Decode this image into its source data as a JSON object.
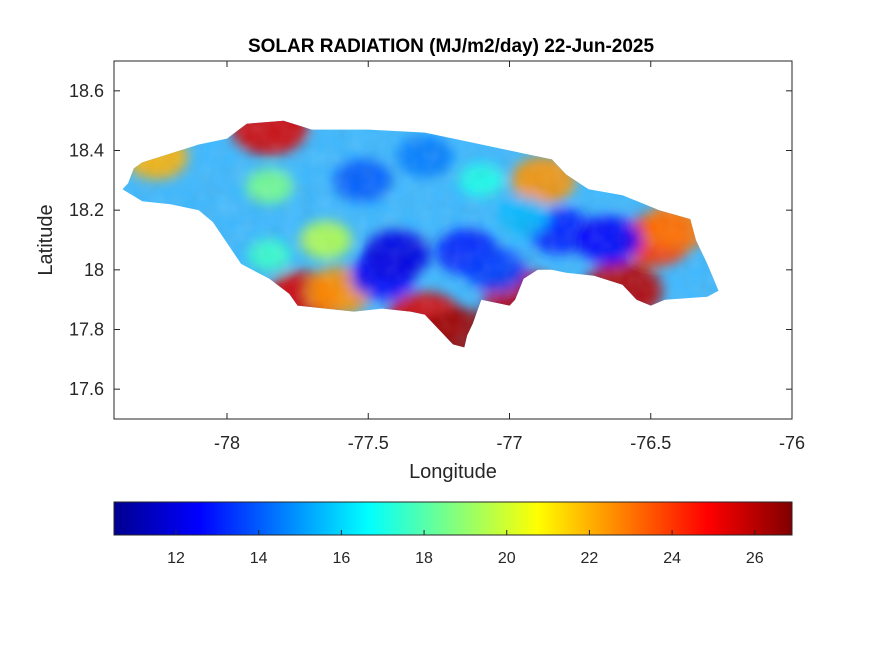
{
  "title": "SOLAR RADIATION (MJ/m2/day) 22-Jun-2025",
  "axes": {
    "xlabel": "Longitude",
    "ylabel": "Latitude",
    "xlim": [
      -78.4,
      -76
    ],
    "ylim": [
      17.5,
      18.7
    ],
    "xticks": [
      -78,
      -77.5,
      -77,
      -76.5,
      -76
    ],
    "xtick_labels": [
      "-78",
      "-77.5",
      "-77",
      "-76.5",
      "-76"
    ],
    "yticks": [
      17.6,
      17.8,
      18,
      18.2,
      18.4,
      18.6
    ],
    "ytick_labels": [
      "17.6",
      "17.8",
      "18",
      "18.2",
      "18.4",
      "18.6"
    ]
  },
  "colorbar": {
    "orientation": "horizontal",
    "colormap": "jet",
    "range": [
      10.5,
      26.9
    ],
    "ticks": [
      12,
      14,
      16,
      18,
      20,
      22,
      24,
      26
    ],
    "tick_labels": [
      "12",
      "14",
      "16",
      "18",
      "20",
      "22",
      "24",
      "26"
    ],
    "colors": [
      "#00008f",
      "#0000ff",
      "#0080ff",
      "#00ffff",
      "#80ff80",
      "#ffff00",
      "#ff8000",
      "#ff0000",
      "#800000"
    ]
  },
  "chart_data": {
    "type": "heatmap",
    "title": "SOLAR RADIATION (MJ/m2/day) 22-Jun-2025",
    "xlabel": "Longitude",
    "ylabel": "Latitude",
    "xlim": [
      -78.4,
      -76
    ],
    "ylim": [
      17.5,
      18.7
    ],
    "units": "MJ/m2/day",
    "value_range": [
      10.5,
      26.9
    ],
    "grid": false,
    "legend": "colorbar-bottom",
    "region_outline_lonlat": [
      [
        -78.37,
        18.27
      ],
      [
        -78.35,
        18.29
      ],
      [
        -78.33,
        18.34
      ],
      [
        -78.3,
        18.36
      ],
      [
        -78.2,
        18.39
      ],
      [
        -78.1,
        18.42
      ],
      [
        -78.0,
        18.44
      ],
      [
        -77.93,
        18.49
      ],
      [
        -77.8,
        18.5
      ],
      [
        -77.7,
        18.47
      ],
      [
        -77.5,
        18.47
      ],
      [
        -77.3,
        18.46
      ],
      [
        -77.15,
        18.43
      ],
      [
        -77.05,
        18.41
      ],
      [
        -76.95,
        18.39
      ],
      [
        -76.85,
        18.37
      ],
      [
        -76.8,
        18.32
      ],
      [
        -76.72,
        18.27
      ],
      [
        -76.6,
        18.25
      ],
      [
        -76.47,
        18.2
      ],
      [
        -76.36,
        18.17
      ],
      [
        -76.34,
        18.1
      ],
      [
        -76.3,
        18.02
      ],
      [
        -76.26,
        17.93
      ],
      [
        -76.3,
        17.91
      ],
      [
        -76.45,
        17.9
      ],
      [
        -76.5,
        17.88
      ],
      [
        -76.55,
        17.9
      ],
      [
        -76.6,
        17.95
      ],
      [
        -76.7,
        17.98
      ],
      [
        -76.8,
        17.99
      ],
      [
        -76.85,
        18.0
      ],
      [
        -76.9,
        18.0
      ],
      [
        -76.95,
        17.97
      ],
      [
        -76.98,
        17.9
      ],
      [
        -77.0,
        17.88
      ],
      [
        -77.05,
        17.89
      ],
      [
        -77.1,
        17.9
      ],
      [
        -77.13,
        17.82
      ],
      [
        -77.15,
        17.78
      ],
      [
        -77.16,
        17.74
      ],
      [
        -77.2,
        17.75
      ],
      [
        -77.25,
        17.8
      ],
      [
        -77.3,
        17.85
      ],
      [
        -77.35,
        17.86
      ],
      [
        -77.45,
        17.87
      ],
      [
        -77.55,
        17.86
      ],
      [
        -77.65,
        17.87
      ],
      [
        -77.75,
        17.88
      ],
      [
        -77.78,
        17.92
      ],
      [
        -77.85,
        17.97
      ],
      [
        -77.95,
        18.02
      ],
      [
        -78.0,
        18.09
      ],
      [
        -78.05,
        18.16
      ],
      [
        -78.1,
        18.2
      ],
      [
        -78.2,
        18.22
      ],
      [
        -78.3,
        18.23
      ],
      [
        -78.37,
        18.27
      ]
    ],
    "field_blobs": [
      {
        "lon": -77.85,
        "lat": 18.48,
        "value": 25.5
      },
      {
        "lon": -77.3,
        "lat": 17.83,
        "value": 25.5
      },
      {
        "lon": -77.18,
        "lat": 17.77,
        "value": 26.5
      },
      {
        "lon": -76.95,
        "lat": 17.9,
        "value": 26.0
      },
      {
        "lon": -76.6,
        "lat": 17.93,
        "value": 26.0
      },
      {
        "lon": -76.48,
        "lat": 18.1,
        "value": 24.0
      },
      {
        "lon": -76.4,
        "lat": 18.15,
        "value": 23.0
      },
      {
        "lon": -76.88,
        "lat": 18.3,
        "value": 22.5
      },
      {
        "lon": -77.73,
        "lat": 17.9,
        "value": 25.5
      },
      {
        "lon": -77.6,
        "lat": 17.93,
        "value": 22.5
      },
      {
        "lon": -78.25,
        "lat": 18.38,
        "value": 22.0
      },
      {
        "lon": -77.45,
        "lat": 17.98,
        "value": 12.5
      },
      {
        "lon": -77.4,
        "lat": 18.05,
        "value": 12.0
      },
      {
        "lon": -77.15,
        "lat": 18.06,
        "value": 13.0
      },
      {
        "lon": -77.05,
        "lat": 18.0,
        "value": 13.5
      },
      {
        "lon": -76.82,
        "lat": 18.13,
        "value": 13.0
      },
      {
        "lon": -76.65,
        "lat": 18.1,
        "value": 12.5
      },
      {
        "lon": -77.52,
        "lat": 18.3,
        "value": 14.0
      },
      {
        "lon": -77.3,
        "lat": 18.38,
        "value": 14.5
      },
      {
        "lon": -77.85,
        "lat": 18.28,
        "value": 18.5
      },
      {
        "lon": -77.65,
        "lat": 18.1,
        "value": 19.5
      },
      {
        "lon": -77.85,
        "lat": 18.05,
        "value": 17.5
      },
      {
        "lon": -77.1,
        "lat": 18.3,
        "value": 17.0
      },
      {
        "lon": -76.95,
        "lat": 18.18,
        "value": 15.5
      }
    ]
  }
}
